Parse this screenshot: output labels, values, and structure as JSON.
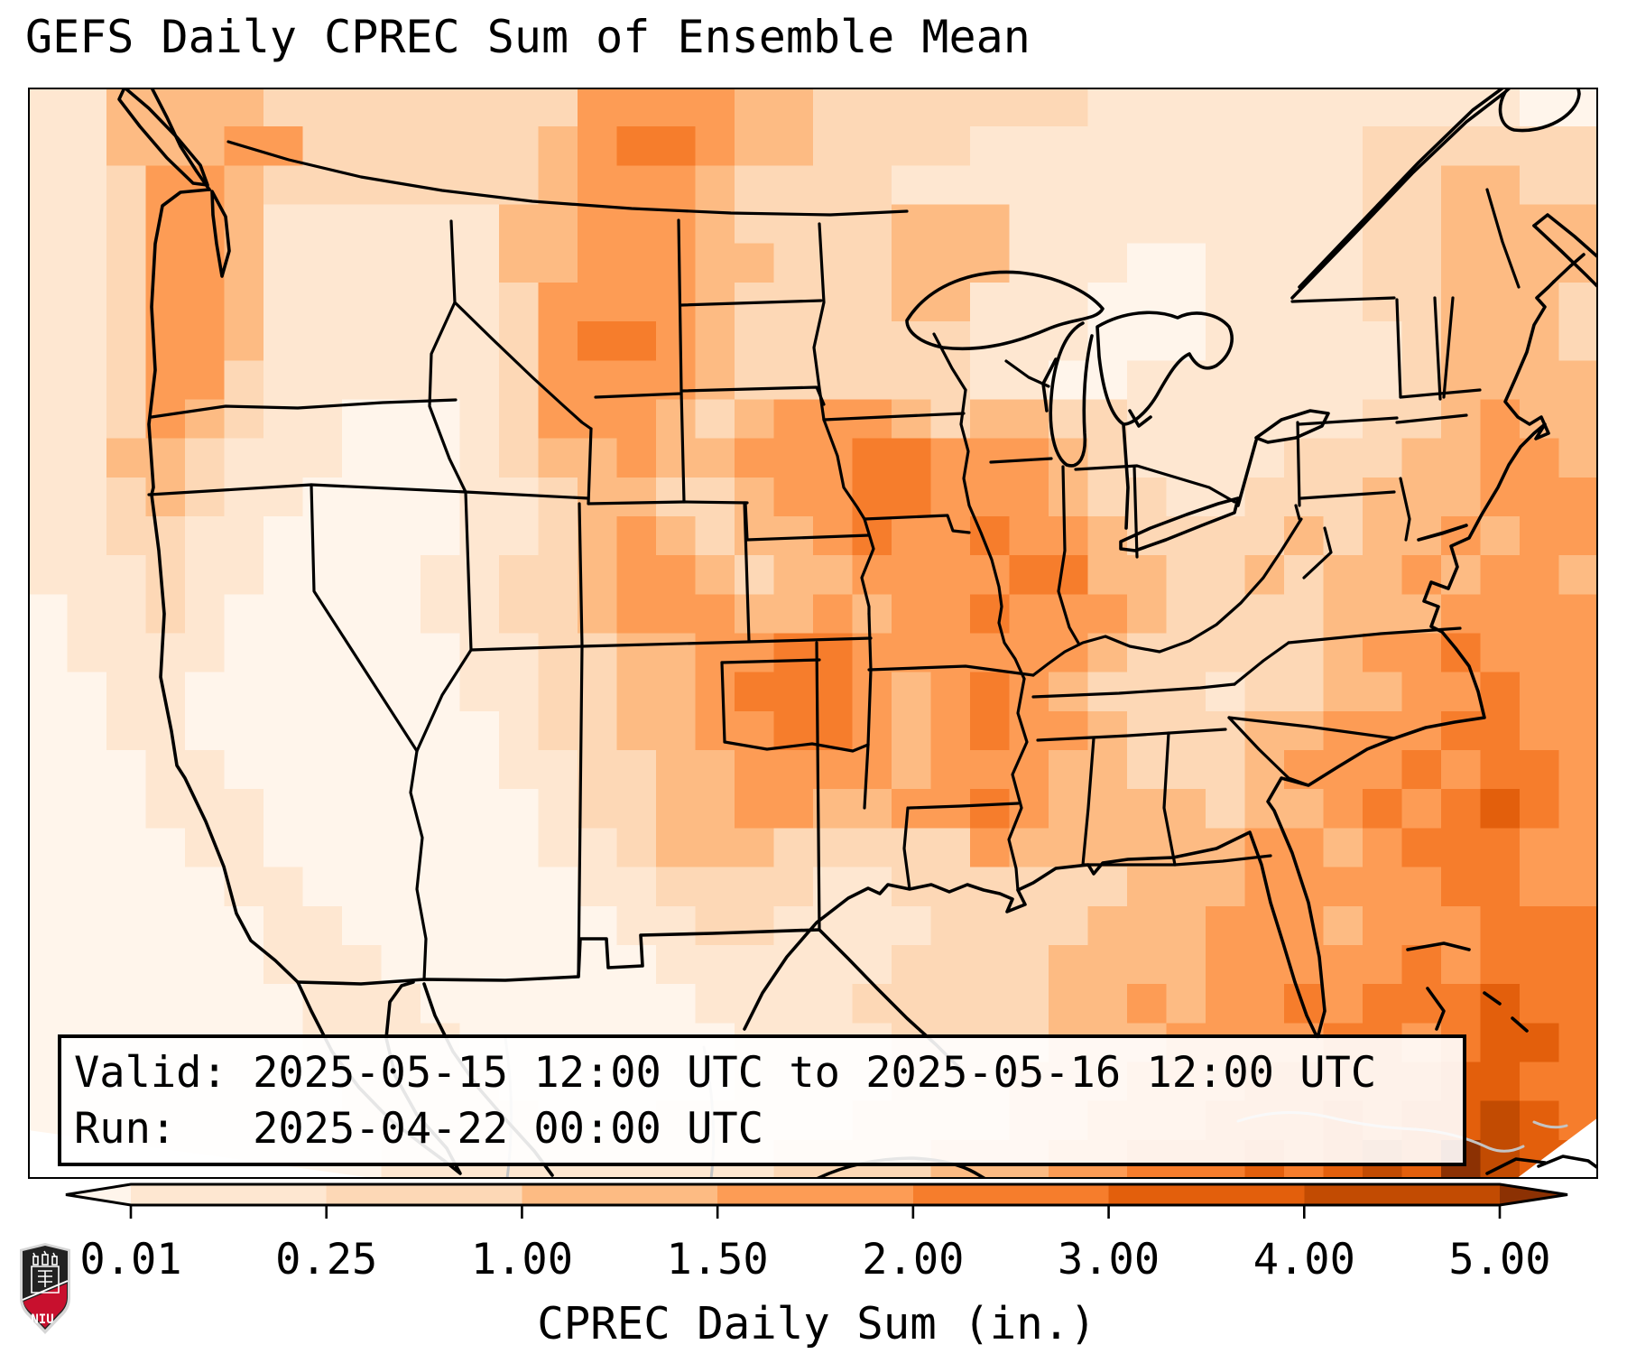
{
  "title": "GEFS Daily CPREC Sum of Ensemble Mean",
  "info_box": {
    "valid_line": "Valid: 2025-05-15 12:00 UTC to 2025-05-16 12:00 UTC",
    "run_line": "Run:   2025-04-22 00:00 UTC"
  },
  "colorbar": {
    "label": "CPREC Daily Sum (in.)",
    "tick_labels": [
      "0.01",
      "0.25",
      "1.00",
      "1.50",
      "2.00",
      "3.00",
      "4.00",
      "5.00"
    ],
    "segment_colors": [
      "#fee7d1",
      "#fdd8b6",
      "#fdbb83",
      "#fd9c55",
      "#f67d2c",
      "#e35f0c",
      "#c24b02"
    ],
    "under_color": "#fff5eb",
    "over_color": "#8c3103",
    "outline_color": "#000000"
  },
  "logo": {
    "text": "NIU",
    "red": "#c8102e",
    "black": "#222222"
  },
  "map": {
    "border_color": "#000000",
    "water_label_color": "#bdbdbd",
    "palette": [
      "#fff5eb",
      "#fee7d1",
      "#fdd8b6",
      "#fdbb83",
      "#fd9c55",
      "#f67d2c",
      "#e35f0c",
      "#c24b02",
      "#8c3103"
    ],
    "grid": {
      "cols": 40,
      "rows": 28,
      "cells": [
        "1133332222222244443322222221111111111100",
        "1133344222222345543322221111111111222222",
        "1124432222222344432222111111111111223322",
        "1124431111113344432222333111111111223333",
        "1124431111113344433222333111001111223333",
        "1124431111112444432222331110001111223332",
        "1124431111112455432222221110001111123332",
        "1124421111112444432222221100111111123333",
        "1124321100012444323444323322111111223433",
        "1133211100012334334445544432111122233443",
        "1123211000011233223445544432211222333444",
        "1122110000011234323345445443222232334344",
        "1112110000112234432334444553322323343443",
        "0112100000112234443343445444322223334444",
        "0111100000011223344554444443222223445444",
        "0011000000011223345554345432221223344544",
        "0011000000001223344554345443222334445544",
        "0001100000001122334444344433222344454554",
        "0001110000000122334433445433332334545654",
        "0000110000000112333222224333333443455544",
        "0000011000000011222211222222333444445544",
        "0000001100000001122111122223334443444555",
        "0000001110000000111111222233334444454555",
        "0000000111000000011112222233434454555655",
        "0000000111100000001111222233344445545665",
        "0000000011110000001111222333444555556655",
        "0000000011111000111112222334445556566765",
        "0000000001111111111222233344555656768766"
      ]
    }
  }
}
